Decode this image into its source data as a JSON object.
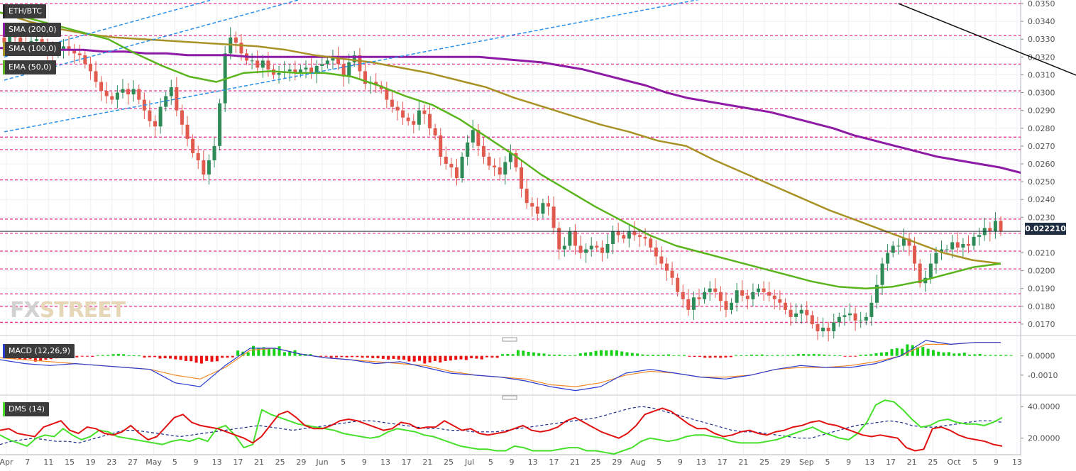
{
  "symbol": "ETH/BTC",
  "indicators": {
    "sma200": "SMA (200,0)",
    "sma100": "SMA (100,0)",
    "ema50": "EMA (50,0)",
    "macd": "MACD (12,26,9)",
    "dms": "DMS (14)"
  },
  "last_price": "0.022210",
  "watermark": {
    "part1": "FX",
    "part2": "STREET"
  },
  "colors": {
    "up": "#2e8b57",
    "down": "#e05a4e",
    "sma200": "#8e1ba6",
    "sma100": "#a89225",
    "ema50": "#5ab51c",
    "hline": "#e8358f",
    "trend_blue": "#2a8fe8",
    "trend_black": "#111111",
    "macd_pos": "#1ad11a",
    "macd_neg": "#ee1111",
    "macd_line": "#2a3ccf",
    "signal_line": "#f28a2a",
    "dms_plus": "#46e02a",
    "dms_minus": "#e21111",
    "adx": "#1a2a8a"
  },
  "chart_data": [
    {
      "type": "candlestick",
      "title": "ETH/BTC",
      "ylim": [
        0.0164,
        0.0352
      ],
      "y_ticks": [
        "0.0350",
        "0.0340",
        "0.0330",
        "0.0320",
        "0.0310",
        "0.0300",
        "0.0290",
        "0.0280",
        "0.0270",
        "0.0260",
        "0.0250",
        "0.0240",
        "0.0230",
        "0.0210",
        "0.0200",
        "0.0190",
        "0.0180",
        "0.0170"
      ],
      "x_tick_labels": [
        "Apr",
        "7",
        "11",
        "15",
        "19",
        "23",
        "27",
        "May",
        "5",
        "9",
        "13",
        "17",
        "21",
        "25",
        "29",
        "Jun",
        "5",
        "9",
        "13",
        "17",
        "21",
        "25",
        "Jul",
        "5",
        "9",
        "13",
        "17",
        "21",
        "25",
        "29",
        "Aug",
        "5",
        "9",
        "13",
        "17",
        "21",
        "25",
        "29",
        "Sep",
        "5",
        "9",
        "13",
        "17",
        "21",
        "25",
        "Oct",
        "5",
        "9",
        "13"
      ],
      "horizontal_levels": [
        0.035,
        0.0332,
        0.0316,
        0.0301,
        0.0291,
        0.0275,
        0.0268,
        0.0251,
        0.0229,
        0.0221,
        0.0211,
        0.0201,
        0.0187,
        0.018,
        0.0171
      ],
      "close": [
        0.0328,
        0.0333,
        0.0331,
        0.0328,
        0.0326,
        0.0329,
        0.033,
        0.0327,
        0.0324,
        0.0322,
        0.0324,
        0.0326,
        0.0324,
        0.0322,
        0.0321,
        0.0316,
        0.0312,
        0.0306,
        0.0301,
        0.0298,
        0.0296,
        0.03,
        0.0302,
        0.0299,
        0.0302,
        0.0296,
        0.029,
        0.0284,
        0.0281,
        0.0292,
        0.0298,
        0.0303,
        0.029,
        0.0282,
        0.0274,
        0.0266,
        0.0262,
        0.0254,
        0.0262,
        0.027,
        0.0294,
        0.0322,
        0.0331,
        0.0328,
        0.0322,
        0.0318,
        0.0318,
        0.0314,
        0.0318,
        0.0313,
        0.031,
        0.0311,
        0.0312,
        0.0313,
        0.0311,
        0.0313,
        0.0314,
        0.0311,
        0.0315,
        0.0316,
        0.0318,
        0.032,
        0.0316,
        0.0309,
        0.0317,
        0.0321,
        0.0312,
        0.0305,
        0.0306,
        0.0304,
        0.0302,
        0.0296,
        0.0292,
        0.029,
        0.0286,
        0.0284,
        0.0282,
        0.029,
        0.0288,
        0.028,
        0.0276,
        0.0264,
        0.026,
        0.0258,
        0.0252,
        0.0264,
        0.0272,
        0.0279,
        0.027,
        0.0264,
        0.0259,
        0.0258,
        0.0254,
        0.0261,
        0.0266,
        0.0258,
        0.0246,
        0.0238,
        0.0236,
        0.0232,
        0.0238,
        0.0236,
        0.0224,
        0.0212,
        0.0214,
        0.0222,
        0.0214,
        0.021,
        0.0212,
        0.0214,
        0.0213,
        0.021,
        0.0215,
        0.0222,
        0.022,
        0.0218,
        0.0222,
        0.022,
        0.0219,
        0.0218,
        0.0213,
        0.0208,
        0.0204,
        0.02,
        0.0196,
        0.0188,
        0.0184,
        0.0178,
        0.0185,
        0.0184,
        0.0188,
        0.019,
        0.0188,
        0.0183,
        0.0178,
        0.0182,
        0.0189,
        0.0186,
        0.0184,
        0.0188,
        0.019,
        0.0188,
        0.0186,
        0.0184,
        0.0182,
        0.0178,
        0.0174,
        0.0176,
        0.0178,
        0.0175,
        0.017,
        0.0166,
        0.0168,
        0.0166,
        0.0171,
        0.0174,
        0.0175,
        0.0176,
        0.0172,
        0.0172,
        0.0174,
        0.0182,
        0.0192,
        0.0204,
        0.021,
        0.0214,
        0.0214,
        0.0218,
        0.0214,
        0.0204,
        0.0193,
        0.0196,
        0.0204,
        0.021,
        0.0212,
        0.0212,
        0.0216,
        0.0213,
        0.0215,
        0.0214,
        0.0219,
        0.022,
        0.0224,
        0.0222,
        0.0228,
        0.0222
      ],
      "sma200": [
        0.0325,
        0.0325,
        0.0324,
        0.0324,
        0.0324,
        0.0323,
        0.0323,
        0.0322,
        0.0322,
        0.0321,
        0.0321,
        0.0321,
        0.032,
        0.032,
        0.032,
        0.032,
        0.032,
        0.032,
        0.032,
        0.032,
        0.032,
        0.032,
        0.032,
        0.032,
        0.0319,
        0.0318,
        0.0317,
        0.0315,
        0.0313,
        0.031,
        0.0307,
        0.0304,
        0.03,
        0.0297,
        0.0295,
        0.0293,
        0.0291,
        0.0289,
        0.0286,
        0.0283,
        0.028,
        0.0276,
        0.0273,
        0.027,
        0.0267,
        0.0264,
        0.0262,
        0.026,
        0.0258,
        0.0255
      ],
      "sma100": [
        0.0345,
        0.034,
        0.0336,
        0.0333,
        0.0331,
        0.033,
        0.0329,
        0.0328,
        0.0327,
        0.0326,
        0.0324,
        0.0321,
        0.0319,
        0.0317,
        0.0314,
        0.0311,
        0.0307,
        0.0303,
        0.0297,
        0.0292,
        0.0287,
        0.0282,
        0.0278,
        0.0273,
        0.027,
        0.0262,
        0.0255,
        0.0248,
        0.0241,
        0.0234,
        0.0228,
        0.0222,
        0.0216,
        0.021,
        0.0206,
        0.0204
      ],
      "ema50": [
        0.0345,
        0.0342,
        0.0338,
        0.0334,
        0.033,
        0.0322,
        0.0315,
        0.0309,
        0.0306,
        0.0311,
        0.0312,
        0.0311,
        0.0311,
        0.0309,
        0.0304,
        0.0298,
        0.0293,
        0.0285,
        0.0275,
        0.0265,
        0.0254,
        0.0245,
        0.0236,
        0.0228,
        0.022,
        0.0214,
        0.021,
        0.0206,
        0.0202,
        0.0198,
        0.0194,
        0.0191,
        0.019,
        0.0191,
        0.0194,
        0.0198,
        0.0202,
        0.0204
      ],
      "trend_lines": [
        {
          "color": "blue",
          "from": [
            0,
            0.032
          ],
          "to": [
            42,
            0.0355
          ]
        },
        {
          "color": "blue",
          "from": [
            0,
            0.0307
          ],
          "to": [
            57,
            0.0354
          ]
        },
        {
          "color": "blue",
          "from": [
            0,
            0.0278
          ],
          "to": [
            132,
            0.0354
          ]
        },
        {
          "color": "black",
          "from": [
            166,
            0.035
          ],
          "to": [
            207,
            0.03
          ]
        }
      ]
    },
    {
      "type": "bar",
      "title": "MACD (12,26,9)",
      "ylim": [
        -0.002,
        0.0008
      ],
      "y_ticks": [
        "0.0000",
        "-0.0010"
      ],
      "histogram": [
        -0.00015,
        -0.0002,
        -0.0003,
        -0.0002,
        -0.0001,
        -5e-05,
        5e-05,
        0.0001,
        3e-05,
        -0.0001,
        -0.0002,
        -0.0003,
        -0.0004,
        -0.0003,
        -0.0001,
        0.0003,
        0.0007,
        0.0006,
        0.0003,
        0.0001,
        -5e-05,
        -0.0001,
        -0.0001,
        -0.00015,
        -0.0002,
        -0.0002,
        -0.0003,
        -0.0004,
        -0.0004,
        -0.0003,
        -0.0002,
        -0.0001,
        0.0001,
        0.0003,
        0.0002,
        0.0001,
        5e-05,
        0.0002,
        0.0003,
        0.0003,
        0.0002,
        0.0001,
        0.0001,
        5e-05,
        -5e-05,
        -0.0001,
        -0.0001,
        5e-05,
        0.0001,
        5e-05,
        5e-05,
        0.0001,
        0.0001,
        5e-05,
        -5e-05,
        0.0001,
        0.0002,
        0.0004,
        0.0006,
        0.0005,
        0.0003,
        0.0002,
        0.0001,
        5e-05,
        5e-05
      ],
      "macd_line": [
        -0.0002,
        -0.0004,
        -0.0005,
        -0.0004,
        -0.0005,
        -0.0006,
        -0.0007,
        -0.0014,
        -0.0016,
        -0.0005,
        0.0004,
        0.0004,
        0.0001,
        -0.0001,
        -0.0002,
        -0.0004,
        -0.0003,
        -0.0006,
        -0.0009,
        -0.001,
        -0.0011,
        -0.0013,
        -0.0016,
        -0.0018,
        -0.0016,
        -0.0009,
        -0.0007,
        -0.0009,
        -0.0011,
        -0.0012,
        -0.001,
        -0.0007,
        -0.0005,
        -0.0006,
        -0.0006,
        -0.0004,
        0.0,
        0.0008,
        0.0006,
        0.0007,
        0.0007
      ],
      "signal_line": [
        -0.0001,
        -0.0002,
        -0.0003,
        -0.0004,
        -0.0005,
        -0.0006,
        -0.0007,
        -0.001,
        -0.0012,
        -0.0006,
        0.0003,
        0.0004,
        0.0001,
        -0.0001,
        -0.0002,
        -0.0003,
        -0.0004,
        -0.0005,
        -0.0008,
        -0.001,
        -0.0011,
        -0.0012,
        -0.0015,
        -0.0016,
        -0.0014,
        -0.001,
        -0.0008,
        -0.0009,
        -0.0011,
        -0.0011,
        -0.001,
        -0.0007,
        -0.0006,
        -0.0006,
        -0.0005,
        -0.0003,
        0.0,
        0.0006,
        0.0006,
        0.0007,
        0.0007
      ]
    },
    {
      "type": "line",
      "title": "DMS (14)",
      "ylim": [
        10,
        45
      ],
      "y_ticks": [
        "40.0000",
        "20.0000"
      ],
      "series": [
        {
          "values": [
            25,
            26,
            23,
            22,
            21,
            27,
            29,
            31,
            25,
            23,
            27,
            26,
            23,
            22,
            24,
            28,
            23,
            19,
            21,
            27,
            33,
            35,
            30,
            28,
            27,
            26,
            24,
            22,
            20,
            17,
            21,
            28,
            35,
            37,
            33,
            28,
            26,
            26,
            28,
            31,
            32,
            31,
            29,
            27,
            25,
            26,
            30,
            29,
            26,
            27,
            27,
            31,
            28,
            25,
            26,
            23,
            22,
            23,
            24,
            26,
            28,
            25,
            24,
            25,
            27,
            31,
            33,
            30,
            27,
            24,
            22,
            20,
            23,
            28,
            35,
            37,
            39,
            37,
            33,
            29,
            26,
            26,
            23,
            21,
            22,
            24,
            25,
            23,
            22,
            24,
            25,
            27,
            28,
            30,
            31,
            29,
            28,
            26,
            24,
            22,
            21,
            22,
            21,
            20,
            14,
            12,
            13,
            26,
            27,
            25,
            22,
            20,
            19,
            18,
            16,
            15
          ]
        },
        {
          "values": [
            22,
            19,
            17,
            15,
            20,
            22,
            21,
            26,
            22,
            19,
            21,
            25,
            24,
            21,
            20,
            19,
            18,
            17,
            16,
            18,
            19,
            18,
            20,
            18,
            26,
            28,
            22,
            14,
            16,
            38,
            35,
            33,
            31,
            29,
            28,
            27,
            26,
            25,
            23,
            22,
            21,
            20,
            21,
            24,
            26,
            25,
            24,
            22,
            21,
            19,
            17,
            15,
            14,
            13,
            13,
            12,
            12,
            15,
            14,
            12,
            12,
            12,
            13,
            14,
            14,
            12,
            12,
            11,
            10,
            12,
            14,
            18,
            20,
            19,
            18,
            19,
            21,
            22,
            22,
            21,
            20,
            18,
            17,
            17,
            17,
            18,
            19,
            21,
            23,
            25,
            27,
            24,
            22,
            20,
            19,
            23,
            30,
            41,
            44,
            43,
            38,
            32,
            27,
            28,
            31,
            32,
            30,
            29,
            29,
            28,
            30,
            33
          ]
        },
        {
          "values": [
            16,
            18,
            19,
            20,
            19,
            18,
            18,
            17,
            19,
            21,
            23,
            25,
            25,
            24,
            23,
            22,
            21,
            22,
            23,
            24,
            25,
            26,
            27,
            28,
            27,
            26,
            25,
            26,
            27,
            28,
            29,
            30,
            31,
            31,
            30,
            29,
            28,
            27,
            26,
            26,
            25,
            25,
            24,
            24,
            24,
            25,
            26,
            27,
            28,
            29,
            30,
            31,
            32,
            33,
            35,
            37,
            39,
            40,
            39,
            37,
            35,
            33,
            31,
            29,
            27,
            25,
            24,
            24,
            23,
            22,
            21,
            20,
            20,
            22,
            24,
            26,
            28,
            29,
            30,
            31,
            30,
            28,
            27,
            27,
            28,
            29,
            30,
            31,
            31,
            30
          ]
        }
      ]
    }
  ]
}
